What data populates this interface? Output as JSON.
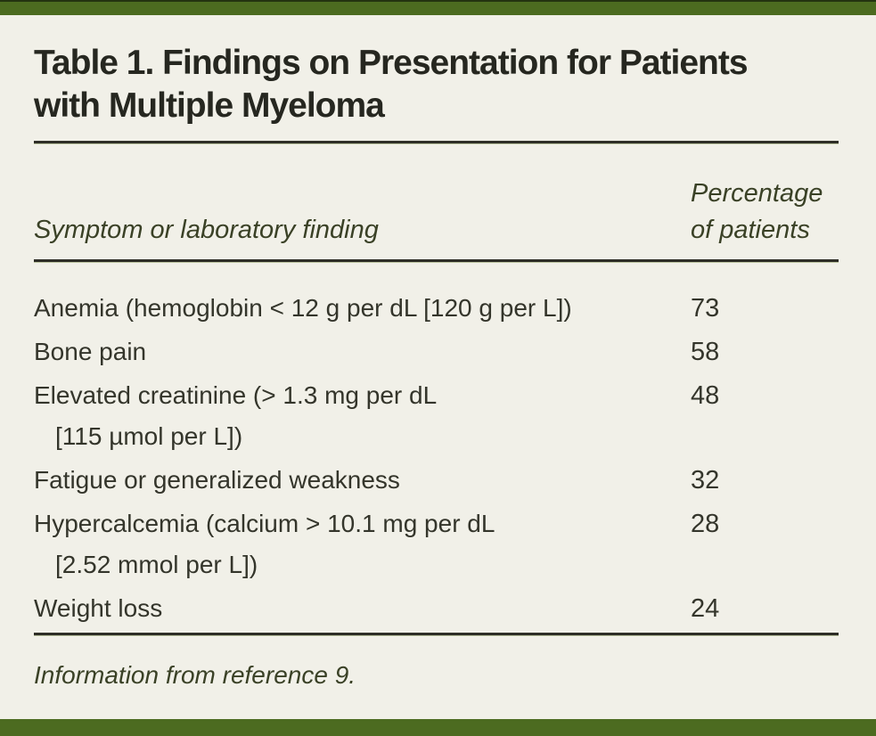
{
  "table": {
    "title_lines": [
      "Table 1. Findings on Presentation for Patients",
      "with Multiple Myeloma"
    ],
    "header": {
      "symptom_col": "Symptom or laboratory finding",
      "percentage_col_lines": [
        "Percentage",
        "of patients"
      ]
    },
    "rows": [
      {
        "symptom_line1": "Anemia (hemoglobin < 12 g per dL [120 g per L])",
        "value": "73"
      },
      {
        "symptom_line1": "Bone pain",
        "value": "58"
      },
      {
        "symptom_line1": "Elevated creatinine (> 1.3 mg per dL",
        "symptom_line2": "[115 µmol per L])",
        "value": "48"
      },
      {
        "symptom_line1": "Fatigue or generalized weakness",
        "value": "32"
      },
      {
        "symptom_line1": "Hypercalcemia (calcium > 10.1 mg per dL",
        "symptom_line2": "[2.52 mmol per L])",
        "value": "28"
      },
      {
        "symptom_line1": "Weight loss",
        "value": "24"
      }
    ],
    "footnote": "Information from reference 9.",
    "colors": {
      "accent_bar": "#4c6b20",
      "background": "#f1f0e8",
      "title_text": "#262720",
      "body_text": "#34352b",
      "italic_accent_text": "#3a4126",
      "rule": "#2e2e27"
    }
  }
}
